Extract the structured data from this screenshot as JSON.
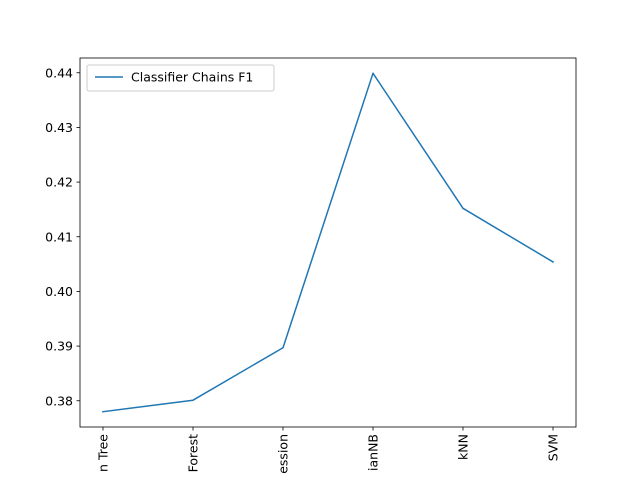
{
  "chart_data": {
    "type": "line",
    "title": "",
    "xlabel": "",
    "ylabel": "",
    "categories": [
      "n Tree",
      "Forest",
      "ession",
      "ianNB",
      "kNN",
      "SVM"
    ],
    "series": [
      {
        "name": "Classifier Chains F1",
        "color": "#1f77b4",
        "values": [
          0.378,
          0.3801,
          0.3897,
          0.4399,
          0.4152,
          0.4054
        ]
      }
    ],
    "ylim": [
      0.3752,
      0.4427
    ],
    "yticks": [
      0.38,
      0.39,
      0.4,
      0.41,
      0.42,
      0.43,
      0.44
    ],
    "ytick_labels": [
      "0.38",
      "0.39",
      "0.40",
      "0.41",
      "0.42",
      "0.43",
      "0.44"
    ],
    "xtick_rotation": "vertical",
    "grid": false,
    "legend_position": "upper-left"
  }
}
